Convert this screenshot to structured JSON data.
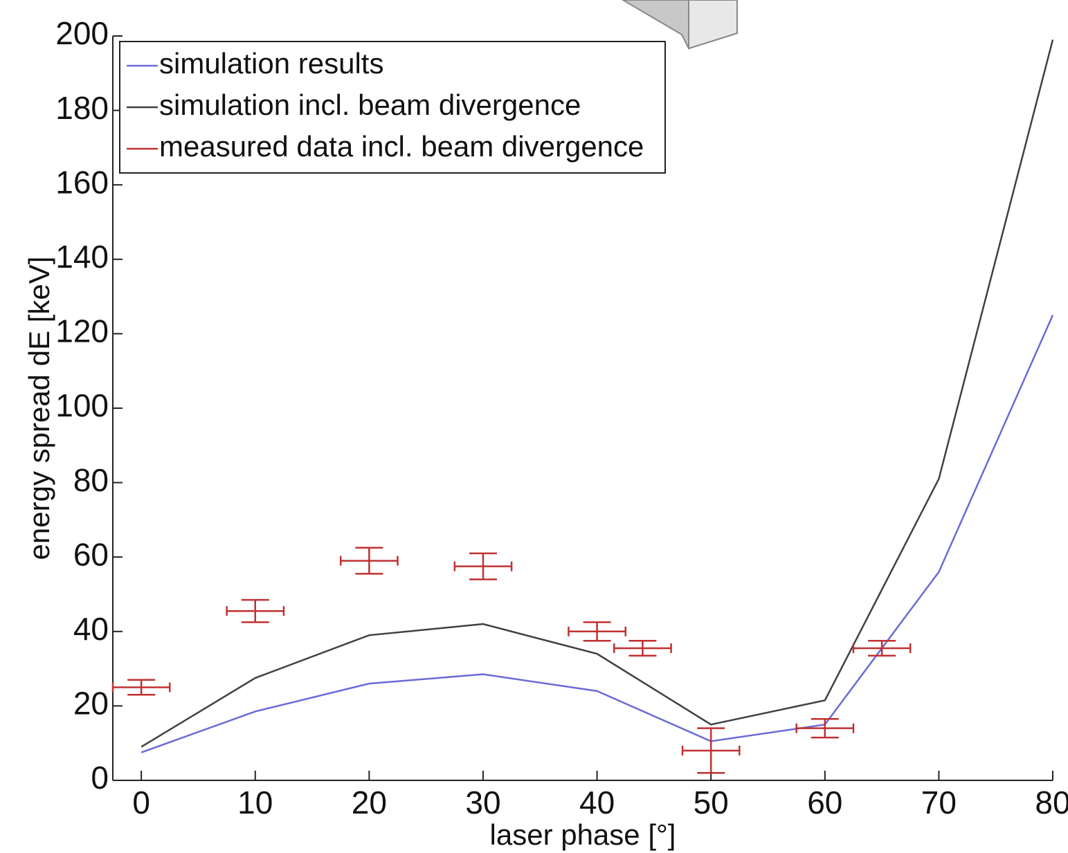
{
  "chart_data": {
    "type": "line",
    "x_label": "laser phase [°]",
    "y_label": "energy spread dE [keV]",
    "xlim": [
      -2.5,
      80
    ],
    "ylim": [
      0,
      200
    ],
    "xticks": [
      0,
      10,
      20,
      30,
      40,
      50,
      60,
      70,
      80
    ],
    "yticks": [
      0,
      20,
      40,
      60,
      80,
      100,
      120,
      140,
      160,
      180,
      200
    ],
    "legend": "upper left",
    "series": [
      {
        "name": "simulation results",
        "color": "#6a6ad8",
        "x": [
          0,
          10,
          20,
          30,
          40,
          50,
          60,
          70,
          80
        ],
        "values": [
          7.5,
          18.5,
          26,
          28.5,
          24,
          10.5,
          15,
          56,
          125
        ]
      },
      {
        "name": "simulation incl. beam divergence",
        "color": "#404040",
        "x": [
          0,
          10,
          20,
          30,
          40,
          50,
          60,
          70,
          80
        ],
        "values": [
          9,
          27.5,
          39,
          42,
          34,
          15,
          21.5,
          81,
          199
        ]
      },
      {
        "name": "measured data incl. beam divergence",
        "color": "#c03030",
        "x": [
          0,
          10,
          20,
          30,
          40,
          44,
          50,
          60,
          65
        ],
        "values": [
          25,
          45.5,
          59,
          57.5,
          40,
          35.5,
          8,
          14,
          35.5
        ],
        "yerr": [
          2,
          3,
          3.5,
          3.5,
          2.5,
          2,
          6,
          2.5,
          2
        ],
        "xerr": [
          2.5,
          2.5,
          2.5,
          2.5,
          2.5,
          2.5,
          2.5,
          2.5,
          2.5
        ]
      }
    ]
  }
}
